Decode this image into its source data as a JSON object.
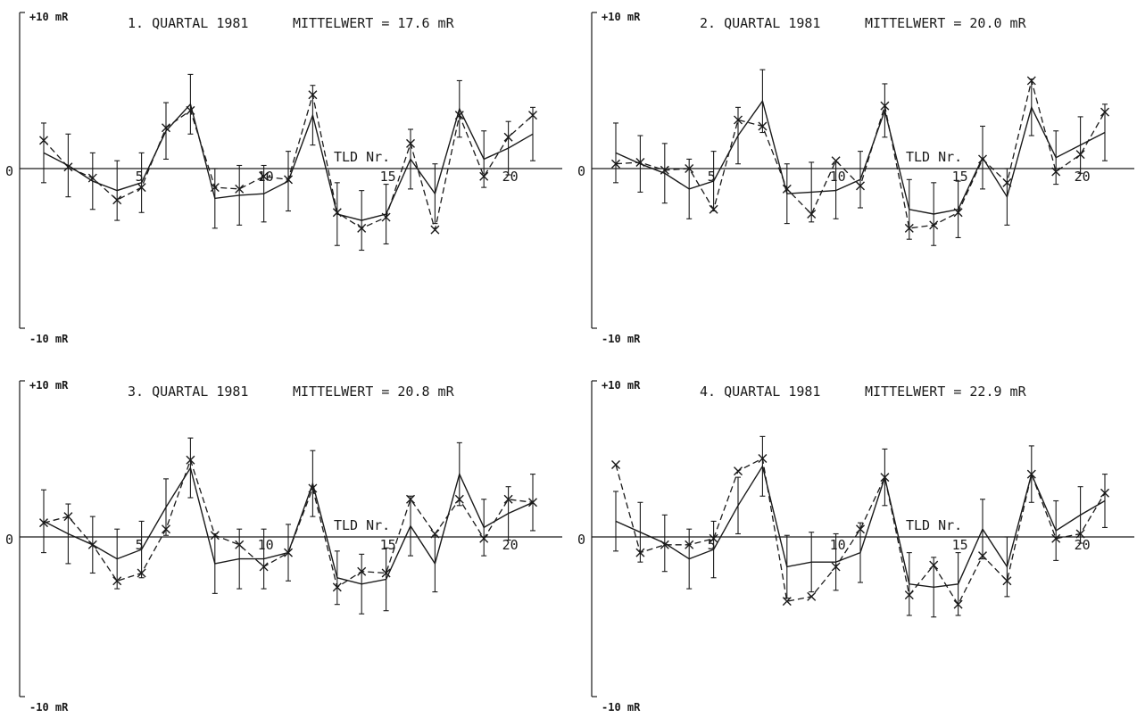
{
  "chart_data": [
    {
      "type": "line",
      "title": "1. QUARTAL 1981",
      "mean_label": "MITTELWERT = 17.6 mR",
      "xlabel": "TLD Nr.",
      "ylabel_top": "+10 mR",
      "ylabel_zero": "0",
      "ylabel_bottom": "-10 mR",
      "ylim": [
        -10,
        10
      ],
      "xlim": [
        1,
        21
      ],
      "x_ticks": [
        5,
        10,
        15,
        20
      ],
      "x": [
        1,
        2,
        3,
        4,
        5,
        6,
        7,
        8,
        9,
        10,
        11,
        12,
        13,
        14,
        15,
        16,
        17,
        18,
        19,
        20,
        21
      ],
      "series": [
        {
          "style": "solid",
          "marker": "none",
          "values": [
            1.0,
            0.2,
            -0.8,
            -1.4,
            -0.9,
            2.4,
            4.1,
            -1.9,
            -1.7,
            -1.6,
            -0.8,
            3.4,
            -2.9,
            -3.3,
            -2.9,
            0.6,
            -1.6,
            3.8,
            0.6,
            1.3,
            2.2
          ],
          "err": [
            1.9,
            2.0,
            1.8,
            1.9,
            1.9,
            1.8,
            1.9,
            1.9,
            1.9,
            1.8,
            1.9,
            1.9,
            2.0,
            1.9,
            1.9,
            1.9,
            1.9,
            1.8,
            1.8,
            1.7,
            1.7
          ]
        },
        {
          "style": "dashed",
          "marker": "x",
          "values": [
            1.8,
            0.1,
            -0.6,
            -2.0,
            -1.2,
            2.6,
            3.7,
            -1.2,
            -1.3,
            -0.5,
            -0.7,
            4.7,
            -2.8,
            -3.8,
            -3.1,
            1.6,
            -3.9,
            3.4,
            -0.5,
            2.0,
            3.4
          ]
        }
      ]
    },
    {
      "type": "line",
      "title": "2. QUARTAL 1981",
      "mean_label": "MITTELWERT = 20.0 mR",
      "xlabel": "TLD Nr.",
      "ylabel_top": "+10 mR",
      "ylabel_zero": "0",
      "ylabel_bottom": "-10 mR",
      "ylim": [
        -10,
        10
      ],
      "xlim": [
        1,
        21
      ],
      "x_ticks": [
        5,
        10,
        15,
        20
      ],
      "x": [
        1,
        2,
        3,
        4,
        5,
        6,
        7,
        8,
        9,
        10,
        11,
        12,
        13,
        14,
        15,
        16,
        17,
        18,
        19,
        20,
        21
      ],
      "series": [
        {
          "style": "solid",
          "marker": "none",
          "values": [
            1.0,
            0.3,
            -0.3,
            -1.3,
            -0.8,
            2.1,
            4.3,
            -1.6,
            -1.5,
            -1.4,
            -0.7,
            3.7,
            -2.6,
            -2.9,
            -2.6,
            0.7,
            -1.8,
            3.9,
            0.7,
            1.5,
            2.3
          ],
          "err": [
            1.9,
            1.8,
            1.9,
            1.9,
            1.9,
            1.8,
            2.0,
            1.9,
            1.9,
            1.8,
            1.8,
            1.7,
            1.9,
            2.0,
            1.8,
            2.0,
            1.8,
            1.8,
            1.7,
            1.8,
            1.8
          ]
        },
        {
          "style": "dashed",
          "marker": "x",
          "values": [
            0.3,
            0.4,
            -0.1,
            0.0,
            -2.6,
            3.1,
            2.7,
            -1.3,
            -2.9,
            0.5,
            -1.1,
            4.0,
            -3.8,
            -3.6,
            -2.8,
            0.6,
            -0.9,
            5.6,
            -0.2,
            0.9,
            3.6
          ]
        }
      ]
    },
    {
      "type": "line",
      "title": "3. QUARTAL 1981",
      "mean_label": "MITTELWERT = 20.8 mR",
      "xlabel": "TLD Nr.",
      "ylabel_top": "+10 mR",
      "ylabel_zero": "0",
      "ylabel_bottom": "-10 mR",
      "ylim": [
        -10,
        10
      ],
      "xlim": [
        1,
        21
      ],
      "x_ticks": [
        5,
        10,
        15,
        20
      ],
      "x": [
        1,
        2,
        3,
        4,
        5,
        6,
        7,
        8,
        9,
        10,
        11,
        12,
        13,
        14,
        15,
        16,
        17,
        18,
        19,
        20,
        21
      ],
      "series": [
        {
          "style": "solid",
          "marker": "none",
          "values": [
            1.0,
            0.2,
            -0.5,
            -1.4,
            -0.8,
            1.9,
            4.4,
            -1.7,
            -1.4,
            -1.4,
            -1.0,
            3.4,
            -2.6,
            -3.0,
            -2.7,
            0.7,
            -1.7,
            4.0,
            0.6,
            1.5,
            2.2
          ],
          "err": [
            2.0,
            1.9,
            1.8,
            1.9,
            1.8,
            1.8,
            1.9,
            1.9,
            1.9,
            1.9,
            1.8,
            2.1,
            1.7,
            1.9,
            2.0,
            1.9,
            1.8,
            2.0,
            1.8,
            1.7,
            1.8
          ]
        },
        {
          "style": "dashed",
          "marker": "x",
          "values": [
            0.9,
            1.3,
            -0.5,
            -2.8,
            -2.3,
            0.5,
            4.9,
            0.1,
            -0.5,
            -1.9,
            -1.0,
            3.1,
            -3.2,
            -2.2,
            -2.3,
            2.4,
            0.2,
            2.4,
            -0.1,
            2.4,
            2.2
          ]
        }
      ]
    },
    {
      "type": "line",
      "title": "4. QUARTAL 1981",
      "mean_label": "MITTELWERT = 22.9 mR",
      "xlabel": "TLD Nr.",
      "ylabel_top": "+10 mR",
      "ylabel_zero": "0",
      "ylabel_bottom": "-10 mR",
      "ylim": [
        -10,
        10
      ],
      "xlim": [
        1,
        21
      ],
      "x_ticks": [
        5,
        10,
        15,
        20
      ],
      "x": [
        1,
        2,
        3,
        4,
        5,
        6,
        7,
        8,
        9,
        10,
        11,
        12,
        13,
        14,
        15,
        16,
        17,
        18,
        19,
        20,
        21
      ],
      "series": [
        {
          "style": "solid",
          "marker": "none",
          "values": [
            1.0,
            0.3,
            -0.4,
            -1.4,
            -0.8,
            2.0,
            4.5,
            -1.9,
            -1.6,
            -1.6,
            -1.0,
            3.8,
            -3.0,
            -3.2,
            -3.0,
            0.5,
            -1.9,
            4.0,
            0.4,
            1.4,
            2.3
          ],
          "err": [
            1.9,
            1.9,
            1.8,
            1.9,
            1.8,
            1.8,
            1.9,
            2.0,
            1.9,
            1.8,
            1.9,
            1.8,
            2.0,
            1.9,
            2.0,
            1.9,
            1.9,
            1.8,
            1.9,
            1.8,
            1.7
          ]
        },
        {
          "style": "dashed",
          "marker": "x",
          "values": [
            4.6,
            -1.0,
            -0.5,
            -0.5,
            -0.1,
            4.2,
            5.0,
            -4.1,
            -3.8,
            -1.9,
            0.5,
            3.8,
            -3.7,
            -1.8,
            -4.3,
            -1.2,
            -2.8,
            4.0,
            -0.1,
            0.2,
            2.8
          ]
        }
      ]
    }
  ]
}
